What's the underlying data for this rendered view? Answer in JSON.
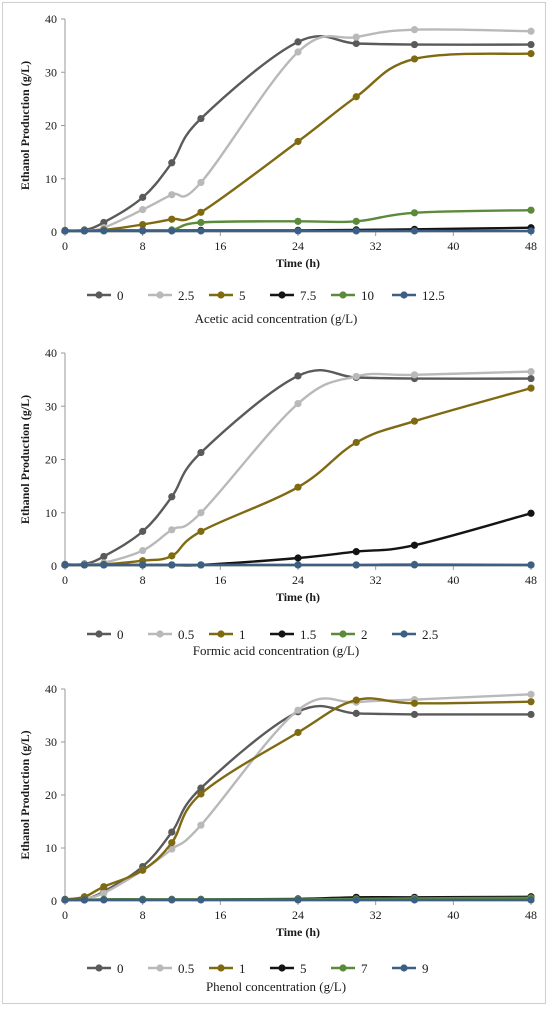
{
  "chart_data": [
    {
      "type": "line",
      "title": "",
      "xlabel": "Time (h)",
      "ylabel": "Ethanol Production (g/L)",
      "caption": "Acetic acid concentration (g/L)",
      "xlim": [
        0,
        48
      ],
      "ylim": [
        0,
        40
      ],
      "xticks": [
        0,
        8,
        16,
        24,
        32,
        40,
        48
      ],
      "yticks": [
        0,
        10,
        20,
        30,
        40
      ],
      "grid": false,
      "legend": "bottom",
      "x": [
        0,
        2,
        4,
        8,
        11,
        14,
        24,
        30,
        36,
        48
      ],
      "series": [
        {
          "name": "0",
          "color": "#5a5a5a",
          "values": [
            0.3,
            0.4,
            1.8,
            6.5,
            13.0,
            21.3,
            35.7,
            35.4,
            35.2,
            35.2
          ]
        },
        {
          "name": "2.5",
          "color": "#b9b9b9",
          "values": [
            0.2,
            0.3,
            0.8,
            4.2,
            7.0,
            9.3,
            33.8,
            36.6,
            38.0,
            37.7
          ]
        },
        {
          "name": "5",
          "color": "#7f6a12",
          "values": [
            0.2,
            0.3,
            0.4,
            1.4,
            2.4,
            3.7,
            17.0,
            25.4,
            32.5,
            33.5
          ]
        },
        {
          "name": "7.5",
          "color": "#141414",
          "values": [
            0.2,
            0.2,
            0.3,
            0.3,
            0.3,
            0.3,
            0.3,
            0.4,
            0.5,
            0.8
          ]
        },
        {
          "name": "10",
          "color": "#5b8a3a",
          "values": [
            0.2,
            0.2,
            0.3,
            0.3,
            0.4,
            1.8,
            2.0,
            2.0,
            3.6,
            4.1
          ]
        },
        {
          "name": "12.5",
          "color": "#3d5f86",
          "values": [
            0.2,
            0.2,
            0.2,
            0.2,
            0.2,
            0.2,
            0.2,
            0.2,
            0.2,
            0.2
          ]
        }
      ]
    },
    {
      "type": "line",
      "title": "",
      "xlabel": "Time (h)",
      "ylabel": "Ethanol Production (g/L)",
      "caption": "Formic  acid concentration (g/L)",
      "xlim": [
        0,
        48
      ],
      "ylim": [
        0,
        40
      ],
      "xticks": [
        0,
        8,
        16,
        24,
        32,
        40,
        48
      ],
      "yticks": [
        0,
        10,
        20,
        30,
        40
      ],
      "grid": false,
      "legend": "bottom",
      "x": [
        0,
        2,
        4,
        8,
        11,
        14,
        24,
        30,
        36,
        48
      ],
      "series": [
        {
          "name": "0",
          "color": "#5a5a5a",
          "values": [
            0.3,
            0.4,
            1.8,
            6.5,
            13.0,
            21.3,
            35.7,
            35.4,
            35.2,
            35.2
          ]
        },
        {
          "name": "0.5",
          "color": "#b9b9b9",
          "values": [
            0.2,
            0.3,
            0.6,
            2.9,
            6.8,
            10.0,
            30.5,
            35.6,
            35.9,
            36.5
          ]
        },
        {
          "name": "1",
          "color": "#7f6a12",
          "values": [
            0.2,
            0.2,
            0.3,
            1.0,
            1.9,
            6.5,
            14.8,
            23.2,
            27.2,
            33.4
          ]
        },
        {
          "name": "1.5",
          "color": "#141414",
          "values": [
            0.2,
            0.2,
            0.2,
            0.2,
            0.2,
            0.2,
            1.5,
            2.7,
            3.9,
            9.9
          ]
        },
        {
          "name": "2",
          "color": "#5b8a3a",
          "values": [
            0.2,
            0.2,
            0.2,
            0.2,
            0.2,
            0.2,
            0.2,
            0.2,
            0.3,
            0.2
          ]
        },
        {
          "name": "2.5",
          "color": "#3d5f86",
          "values": [
            0.2,
            0.2,
            0.2,
            0.2,
            0.2,
            0.2,
            0.2,
            0.2,
            0.2,
            0.2
          ]
        }
      ]
    },
    {
      "type": "line",
      "title": "",
      "xlabel": "Time (h)",
      "ylabel": "Ethanol Production (g/L)",
      "caption": "Phenol concentration (g/L)",
      "xlim": [
        0,
        48
      ],
      "ylim": [
        0,
        40
      ],
      "xticks": [
        0,
        8,
        16,
        24,
        32,
        40,
        48
      ],
      "yticks": [
        0,
        10,
        20,
        30,
        40
      ],
      "grid": false,
      "legend": "bottom",
      "x": [
        0,
        2,
        4,
        8,
        11,
        14,
        24,
        30,
        36,
        48
      ],
      "series": [
        {
          "name": "0",
          "color": "#5a5a5a",
          "values": [
            0.3,
            0.4,
            1.8,
            6.5,
            13.0,
            21.3,
            35.7,
            35.4,
            35.2,
            35.2
          ]
        },
        {
          "name": "0.5",
          "color": "#b9b9b9",
          "values": [
            0.2,
            0.5,
            1.5,
            5.8,
            9.8,
            14.3,
            36.0,
            37.5,
            38.0,
            39.0
          ]
        },
        {
          "name": "1",
          "color": "#7f6a12",
          "values": [
            0.3,
            0.8,
            2.7,
            5.8,
            11.0,
            20.2,
            31.8,
            37.9,
            37.3,
            37.6
          ]
        },
        {
          "name": "5",
          "color": "#141414",
          "values": [
            0.2,
            0.2,
            0.3,
            0.3,
            0.3,
            0.3,
            0.4,
            0.7,
            0.7,
            0.8
          ]
        },
        {
          "name": "7",
          "color": "#5b8a3a",
          "values": [
            0.2,
            0.2,
            0.3,
            0.3,
            0.3,
            0.3,
            0.3,
            0.4,
            0.5,
            0.6
          ]
        },
        {
          "name": "9",
          "color": "#3d5f86",
          "values": [
            0.2,
            0.2,
            0.2,
            0.2,
            0.2,
            0.2,
            0.2,
            0.2,
            0.2,
            0.2
          ]
        }
      ]
    }
  ]
}
